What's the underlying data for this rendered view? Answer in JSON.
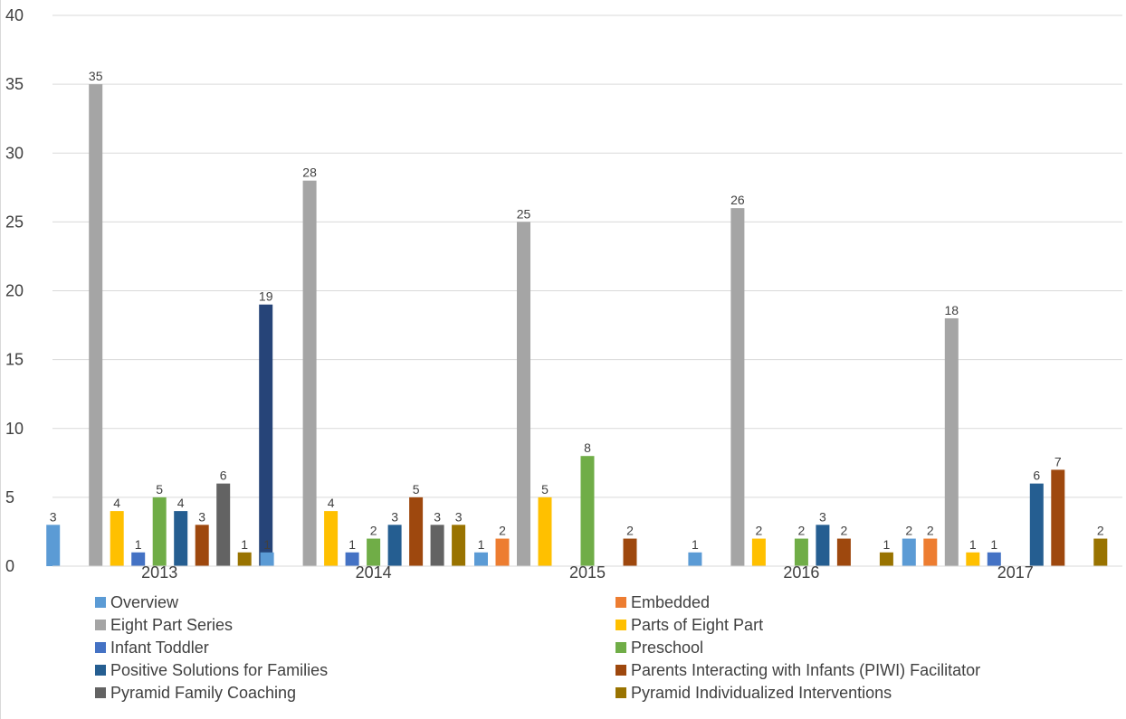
{
  "chart_data": {
    "type": "bar",
    "categories": [
      "2013",
      "2014",
      "2015",
      "2016",
      "2017"
    ],
    "ylim": [
      0,
      40
    ],
    "yticks": [
      0,
      5,
      10,
      15,
      20,
      25,
      30,
      35,
      40
    ],
    "grid": true,
    "legend_position": "bottom",
    "series": [
      {
        "name": "Overview",
        "color": "#5B9BD5",
        "values": [
          3,
          1,
          1,
          1,
          2
        ]
      },
      {
        "name": "Embedded",
        "color": "#ED7D31",
        "values": [
          null,
          null,
          2,
          null,
          2
        ]
      },
      {
        "name": "Eight Part Series",
        "color": "#A5A5A5",
        "values": [
          35,
          28,
          25,
          26,
          18
        ]
      },
      {
        "name": "Parts of Eight Part",
        "color": "#FFC000",
        "values": [
          4,
          4,
          5,
          2,
          1
        ]
      },
      {
        "name": "Infant Toddler",
        "color": "#4472C4",
        "values": [
          1,
          1,
          null,
          null,
          1
        ]
      },
      {
        "name": "Preschool",
        "color": "#70AD47",
        "values": [
          5,
          2,
          8,
          2,
          null
        ]
      },
      {
        "name": "Positive Solutions for Families",
        "color": "#255E91",
        "values": [
          4,
          3,
          null,
          3,
          6
        ]
      },
      {
        "name": "Parents Interacting with Infants (PIWI) Facilitator",
        "color": "#9E480E",
        "values": [
          3,
          5,
          2,
          2,
          7
        ]
      },
      {
        "name": "Pyramid Family Coaching",
        "color": "#636363",
        "values": [
          6,
          3,
          null,
          null,
          null
        ]
      },
      {
        "name": "Pyramid Individualized Interventions",
        "color": "#997300",
        "values": [
          1,
          3,
          null,
          1,
          2
        ]
      },
      {
        "name": "",
        "color": "#264478",
        "values": [
          19,
          null,
          null,
          null,
          null
        ]
      }
    ]
  }
}
